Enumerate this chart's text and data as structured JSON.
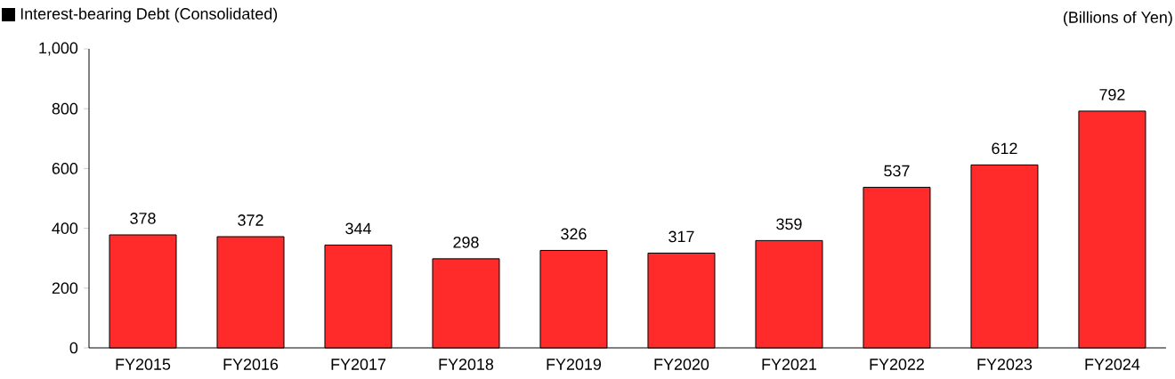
{
  "chart_data": {
    "type": "bar",
    "title": "Interest-bearing Debt (Consolidated)",
    "ylabel": "(Billions of Yen)",
    "categories": [
      "FY2015",
      "FY2016",
      "FY2017",
      "FY2018",
      "FY2019",
      "FY2020",
      "FY2021",
      "FY2022",
      "FY2023",
      "FY2024"
    ],
    "values": [
      378,
      372,
      344,
      298,
      326,
      317,
      359,
      537,
      612,
      792
    ],
    "color": "#ff2a2a",
    "ylim": [
      0,
      1000
    ],
    "yticks": [
      0,
      200,
      400,
      600,
      800,
      {
        "value": 1000,
        "label": "1,000"
      }
    ],
    "data_labels": true
  }
}
